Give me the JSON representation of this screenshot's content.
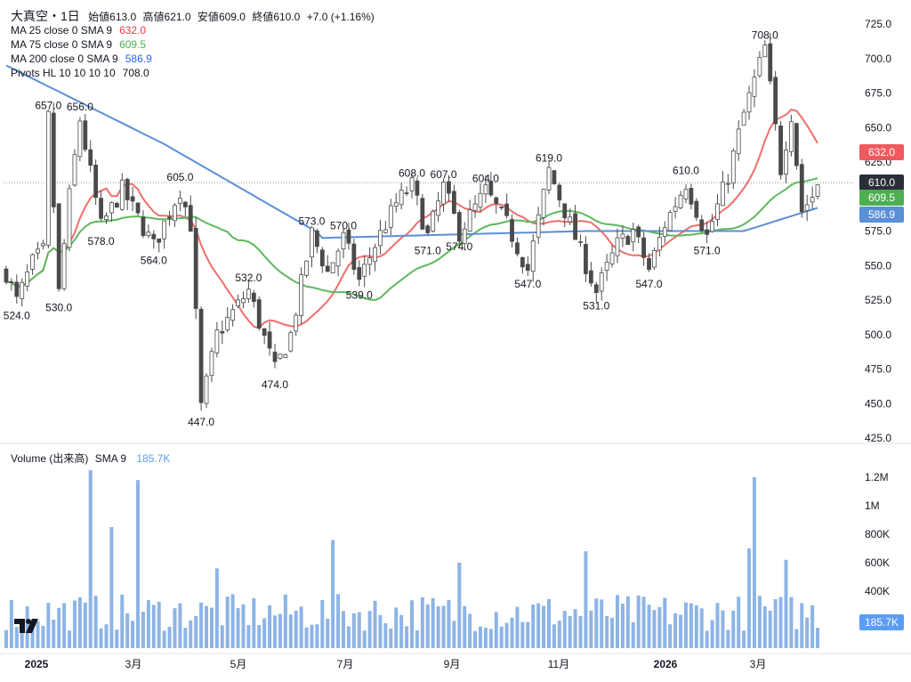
{
  "header": {
    "symbol": "大真空・1日",
    "ohlc": {
      "open_label": "始値",
      "open": "613.0",
      "high_label": "高値",
      "high": "621.0",
      "low_label": "安値",
      "low": "609.0",
      "close_label": "終値",
      "close": "610.0",
      "change": "+7.0 (+1.16%)"
    }
  },
  "indicators": [
    {
      "label": "MA 25 close 0 SMA 9",
      "value": "632.0",
      "color": "#f23645"
    },
    {
      "label": "MA 75 close 0 SMA 9",
      "value": "609.5",
      "color": "#4caf50"
    },
    {
      "label": "MA 200 close 0 SMA 9",
      "value": "586.9",
      "color": "#2962ff"
    },
    {
      "label": "Pivots HL 10 10 10 10",
      "value": "708.0",
      "color": "#131722"
    }
  ],
  "volume_legend": {
    "label": "Volume (出来高)",
    "sma": "SMA 9",
    "value": "185.7K",
    "color": "#5b9cf6"
  },
  "price_tags": {
    "last": "610.0",
    "ma25": "632.0",
    "ma75": "609.5",
    "ma200": "586.9",
    "volume": "185.7K"
  },
  "colors": {
    "up": "#ffffff",
    "down": "#4a4a4a",
    "wick": "#4a4a4a",
    "ma25": "#ef6f6c",
    "ma75": "#5fb85f",
    "ma200": "#5b8fd6",
    "volume": "#8db4e6"
  },
  "chart_data": {
    "type": "candlestick",
    "x_ticks": [
      "2025",
      "3月",
      "5月",
      "7月",
      "9月",
      "11月",
      "2026",
      "3月"
    ],
    "y_ticks": [
      "725.0",
      "700.0",
      "675.0",
      "650.0",
      "625.0",
      "600.0",
      "575.0",
      "550.0",
      "525.0",
      "500.0",
      "475.0",
      "450.0",
      "425.0"
    ],
    "ylim": [
      425,
      725
    ],
    "volume_ticks": [
      "1.2M",
      "1M",
      "800K",
      "600K",
      "400K"
    ],
    "volume_lim": [
      0,
      1300000
    ],
    "pivot_labels": [
      {
        "text": "657.0",
        "day": 8,
        "v": 657,
        "pos": "above"
      },
      {
        "text": "656.0",
        "day": 14,
        "v": 656,
        "pos": "above"
      },
      {
        "text": "524.0",
        "day": 2,
        "v": 524,
        "pos": "below"
      },
      {
        "text": "530.0",
        "day": 10,
        "v": 530,
        "pos": "below"
      },
      {
        "text": "578.0",
        "day": 18,
        "v": 578,
        "pos": "below"
      },
      {
        "text": "564.0",
        "day": 28,
        "v": 564,
        "pos": "below"
      },
      {
        "text": "605.0",
        "day": 33,
        "v": 605,
        "pos": "above"
      },
      {
        "text": "447.0",
        "day": 37,
        "v": 447,
        "pos": "below"
      },
      {
        "text": "532.0",
        "day": 46,
        "v": 532,
        "pos": "above"
      },
      {
        "text": "474.0",
        "day": 51,
        "v": 474,
        "pos": "below"
      },
      {
        "text": "573.0",
        "day": 58,
        "v": 573,
        "pos": "above"
      },
      {
        "text": "570.0",
        "day": 64,
        "v": 570,
        "pos": "above"
      },
      {
        "text": "539.0",
        "day": 67,
        "v": 539,
        "pos": "below"
      },
      {
        "text": "608.0",
        "day": 77,
        "v": 608,
        "pos": "above"
      },
      {
        "text": "571.0",
        "day": 80,
        "v": 571,
        "pos": "below"
      },
      {
        "text": "607.0",
        "day": 83,
        "v": 607,
        "pos": "above"
      },
      {
        "text": "574.0",
        "day": 86,
        "v": 574,
        "pos": "below"
      },
      {
        "text": "604.0",
        "day": 91,
        "v": 604,
        "pos": "above"
      },
      {
        "text": "547.0",
        "day": 99,
        "v": 547,
        "pos": "below"
      },
      {
        "text": "619.0",
        "day": 103,
        "v": 619,
        "pos": "above"
      },
      {
        "text": "531.0",
        "day": 112,
        "v": 531,
        "pos": "below"
      },
      {
        "text": "547.0",
        "day": 122,
        "v": 547,
        "pos": "below"
      },
      {
        "text": "610.0",
        "day": 129,
        "v": 610,
        "pos": "above"
      },
      {
        "text": "571.0",
        "day": 133,
        "v": 571,
        "pos": "below"
      },
      {
        "text": "708.0",
        "day": 144,
        "v": 708,
        "pos": "above"
      }
    ]
  }
}
